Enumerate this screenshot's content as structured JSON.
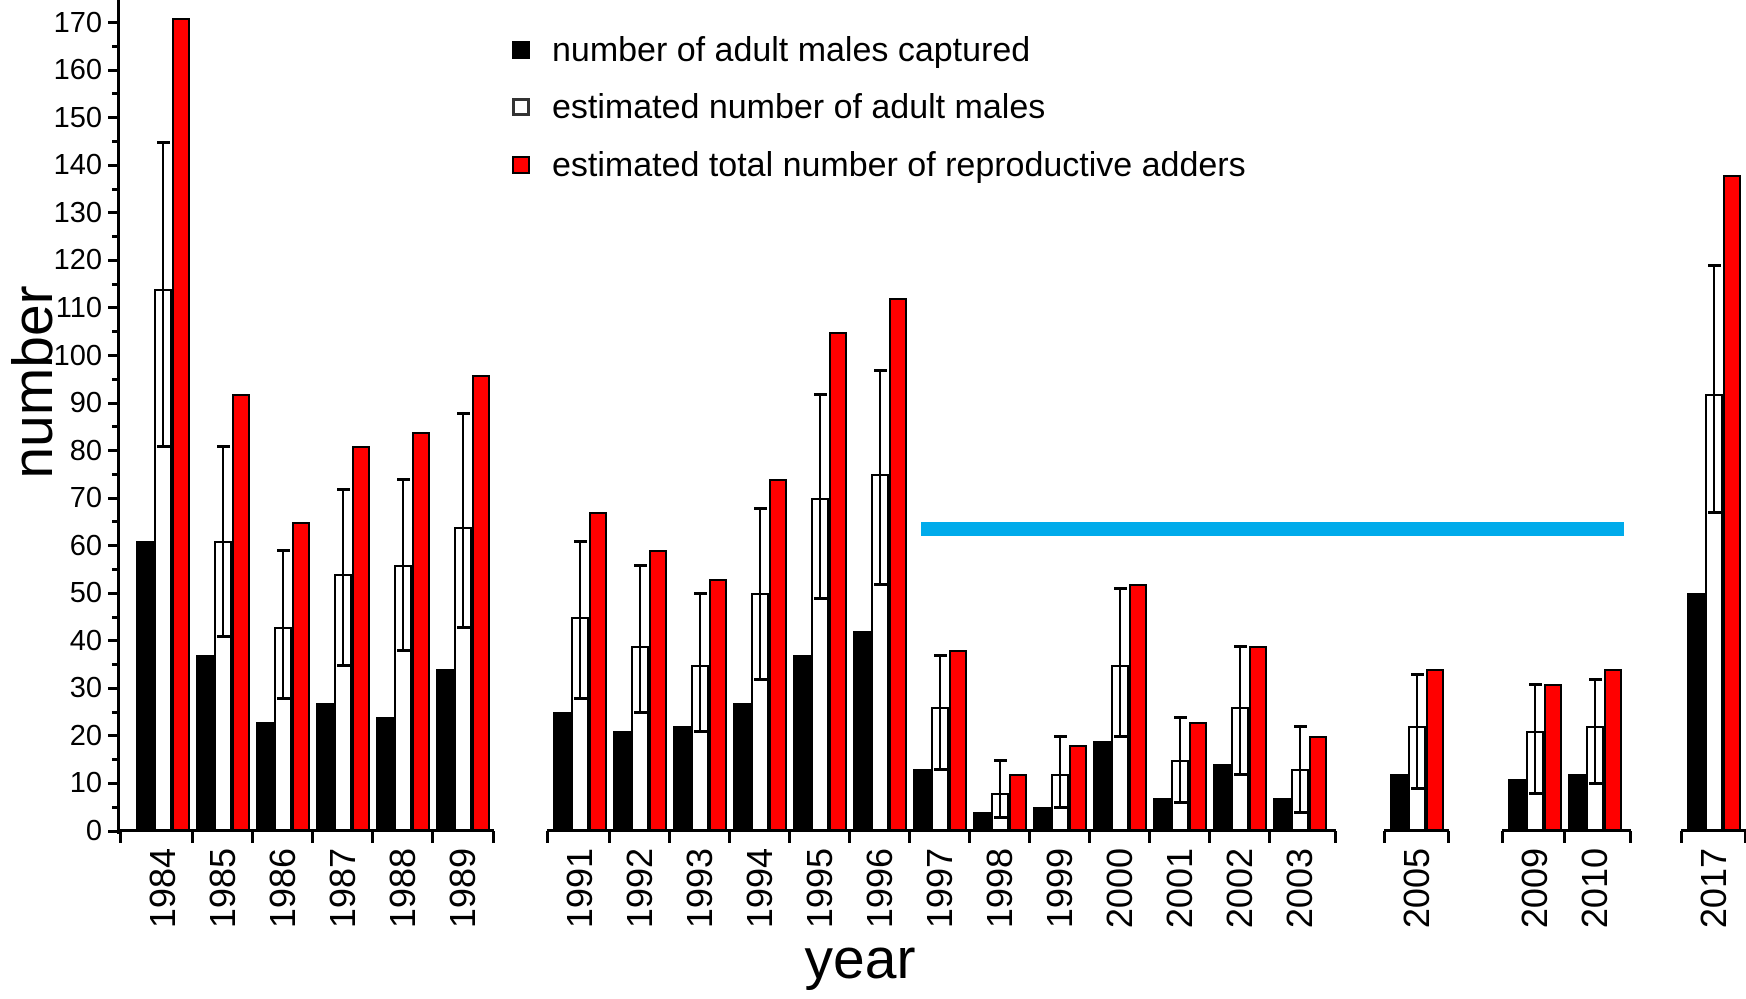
{
  "axes": {
    "y_title": "number",
    "x_title": "year"
  },
  "legend": {
    "items": [
      {
        "label": "number of adult males captured",
        "swatch_color": "#000000",
        "swatch_style": "filled-black"
      },
      {
        "label": "estimated number of adult males",
        "swatch_color": "#ffffff",
        "swatch_style": "outlined-white"
      },
      {
        "label": "estimated total number of reproductive adders",
        "swatch_color": "#ff0000",
        "swatch_style": "filled-red"
      }
    ]
  },
  "chart_data": {
    "type": "bar",
    "title": "",
    "xlabel": "year",
    "ylabel": "number",
    "ylim": [
      0,
      175
    ],
    "y_major_ticks": [
      0,
      10,
      20,
      30,
      40,
      50,
      60,
      70,
      80,
      90,
      100,
      110,
      120,
      130,
      140,
      150,
      160,
      170
    ],
    "y_minor_tick_step": 5,
    "grid": false,
    "legend_position": "top-center-inside",
    "series_names": [
      "number of adult males captured",
      "estimated number of adult males",
      "estimated total number of reproductive adders"
    ],
    "x_axis_breaks_between": [
      [
        "1989",
        "1991"
      ],
      [
        "2003",
        "2005"
      ],
      [
        "2005",
        "2009"
      ],
      [
        "2010",
        "2017"
      ]
    ],
    "segments": [
      [
        "1984",
        "1985",
        "1986",
        "1987",
        "1988",
        "1989"
      ],
      [
        "1991",
        "1992",
        "1993",
        "1994",
        "1995",
        "1996",
        "1997",
        "1998",
        "1999",
        "2000",
        "2001",
        "2002",
        "2003"
      ],
      [
        "2005"
      ],
      [
        "2009",
        "2010"
      ],
      [
        "2017"
      ]
    ],
    "groups": [
      {
        "year": "1984",
        "captured": 61,
        "estimated": 114,
        "err": [
          81,
          145
        ],
        "total": 171
      },
      {
        "year": "1985",
        "captured": 37,
        "estimated": 61,
        "err": [
          41,
          81
        ],
        "total": 92
      },
      {
        "year": "1986",
        "captured": 23,
        "estimated": 43,
        "err": [
          28,
          59
        ],
        "total": 65
      },
      {
        "year": "1987",
        "captured": 27,
        "estimated": 54,
        "err": [
          35,
          72
        ],
        "total": 81
      },
      {
        "year": "1988",
        "captured": 24,
        "estimated": 56,
        "err": [
          38,
          74
        ],
        "total": 84
      },
      {
        "year": "1989",
        "captured": 34,
        "estimated": 64,
        "err": [
          43,
          88
        ],
        "total": 96
      },
      {
        "year": "1991",
        "captured": 25,
        "estimated": 45,
        "err": [
          28,
          61
        ],
        "total": 67
      },
      {
        "year": "1992",
        "captured": 21,
        "estimated": 39,
        "err": [
          25,
          56
        ],
        "total": 59
      },
      {
        "year": "1993",
        "captured": 22,
        "estimated": 35,
        "err": [
          21,
          50
        ],
        "total": 53
      },
      {
        "year": "1994",
        "captured": 27,
        "estimated": 50,
        "err": [
          32,
          68
        ],
        "total": 74
      },
      {
        "year": "1995",
        "captured": 37,
        "estimated": 70,
        "err": [
          49,
          92
        ],
        "total": 105
      },
      {
        "year": "1996",
        "captured": 42,
        "estimated": 75,
        "err": [
          52,
          97
        ],
        "total": 112
      },
      {
        "year": "1997",
        "captured": 13,
        "estimated": 26,
        "err": [
          13,
          37
        ],
        "total": 38
      },
      {
        "year": "1998",
        "captured": 4,
        "estimated": 8,
        "err": [
          3,
          15
        ],
        "total": 12
      },
      {
        "year": "1999",
        "captured": 5,
        "estimated": 12,
        "err": [
          5,
          20
        ],
        "total": 18
      },
      {
        "year": "2000",
        "captured": 19,
        "estimated": 35,
        "err": [
          20,
          51
        ],
        "total": 52
      },
      {
        "year": "2001",
        "captured": 7,
        "estimated": 15,
        "err": [
          6,
          24
        ],
        "total": 23
      },
      {
        "year": "2002",
        "captured": 14,
        "estimated": 26,
        "err": [
          12,
          39
        ],
        "total": 39
      },
      {
        "year": "2003",
        "captured": 7,
        "estimated": 13,
        "err": [
          4,
          22
        ],
        "total": 20
      },
      {
        "year": "2005",
        "captured": 12,
        "estimated": 22,
        "err": [
          9,
          33
        ],
        "total": 34
      },
      {
        "year": "2009",
        "captured": 11,
        "estimated": 21,
        "err": [
          8,
          31
        ],
        "total": 31
      },
      {
        "year": "2010",
        "captured": 12,
        "estimated": 22,
        "err": [
          10,
          32
        ],
        "total": 34
      },
      {
        "year": "2017",
        "captured": 50,
        "estimated": 92,
        "err": [
          67,
          119
        ],
        "total": 138
      }
    ],
    "annotation": {
      "type": "horizontal-band",
      "from_year": "1997",
      "to_year": "2010",
      "y_range": [
        62,
        65
      ],
      "color": "#00ABEB"
    },
    "colors": {
      "captured": "#000000",
      "estimated_fill": "#ffffff",
      "total": "#ff0000",
      "outline": "#000000",
      "error_bar": "#000000",
      "annotation": "#00ABEB",
      "axis": "#000000"
    }
  }
}
